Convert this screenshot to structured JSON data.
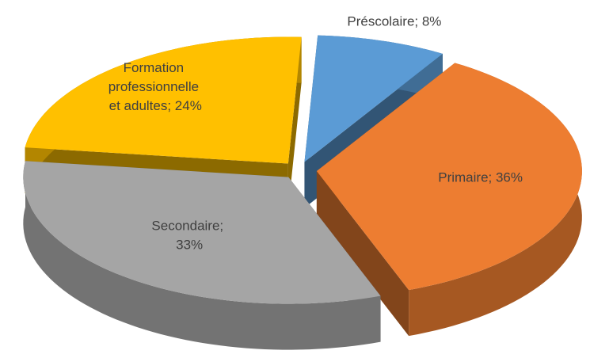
{
  "chart_data": {
    "type": "pie",
    "values": [
      8,
      36,
      33,
      24
    ],
    "value_labels": [
      "Préscolaire; 8%",
      "Primaire; 36%",
      "Secondaire; 33%",
      "Formation professionnelle et adultes; 24%"
    ],
    "colors": [
      "#5b9bd5",
      "#ed7d31",
      "#a5a5a5",
      "#ffc000"
    ]
  }
}
